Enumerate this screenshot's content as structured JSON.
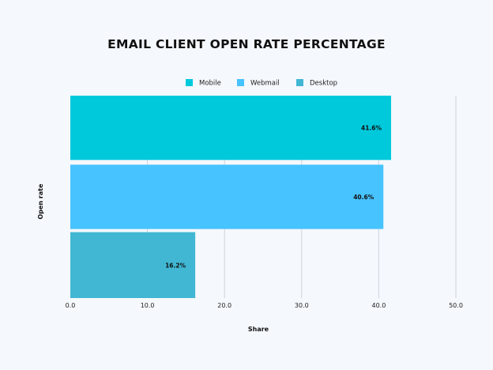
{
  "colors": {
    "background": "#f5f8fd",
    "grid": "#cfd3da",
    "Mobile": "#00c9dc",
    "Webmail": "#47c3ff",
    "Desktop": "#41b7d3"
  },
  "chart_data": {
    "type": "bar",
    "orientation": "horizontal",
    "title": "EMAIL CLIENT OPEN RATE PERCENTAGE",
    "xlabel": "Share",
    "ylabel": "Open rate",
    "xlim": [
      0,
      50
    ],
    "xticks": [
      "0.0",
      "10.0",
      "20.0",
      "30.0",
      "40.0",
      "50.0"
    ],
    "grid": "vertical",
    "legend_position": "top-center",
    "series": [
      {
        "name": "Mobile",
        "values": [
          41.6
        ],
        "label": "41.6%"
      },
      {
        "name": "Webmail",
        "values": [
          40.6
        ],
        "label": "40.6%"
      },
      {
        "name": "Desktop",
        "values": [
          16.2
        ],
        "label": "16.2%"
      }
    ]
  }
}
